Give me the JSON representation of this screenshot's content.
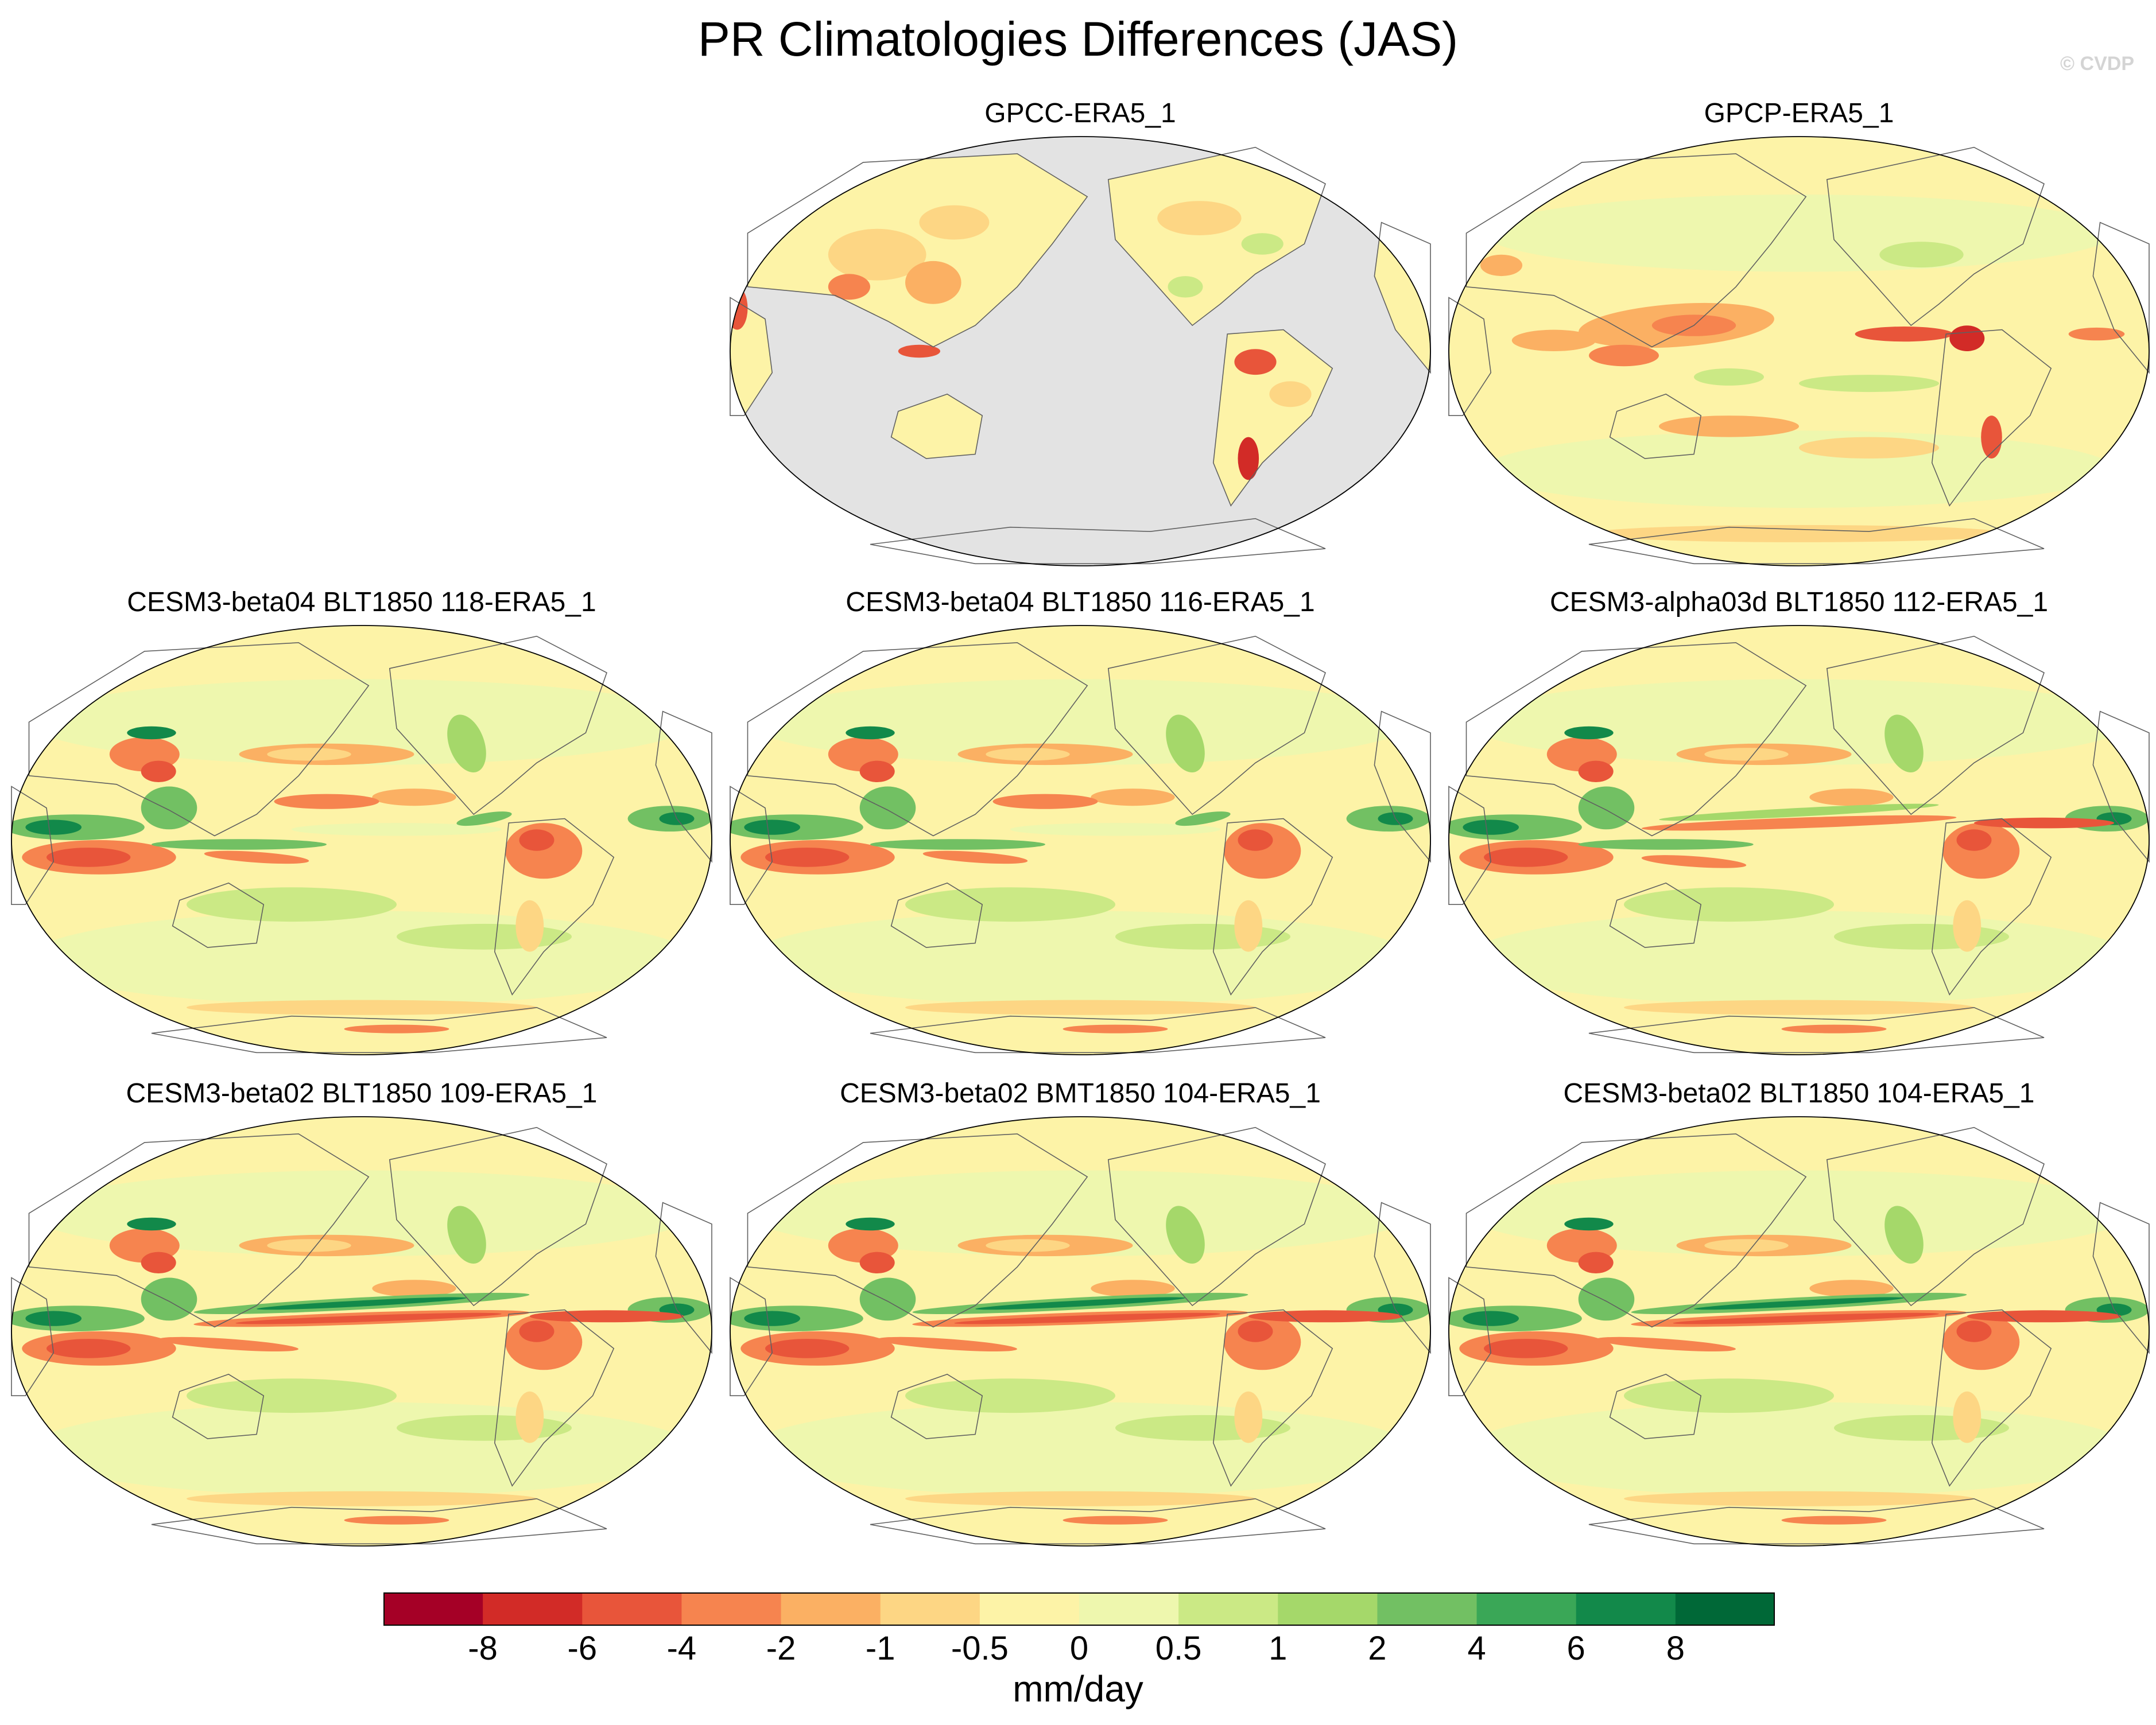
{
  "figure": {
    "title": "PR Climatologies Differences (JAS)",
    "credit": "© CVDP",
    "units": "mm/day"
  },
  "panels": [
    {
      "id": "gpcc",
      "title": "GPCC-ERA5_1",
      "style": "land_only"
    },
    {
      "id": "gpcp",
      "title": "GPCP-ERA5_1",
      "style": "obs"
    },
    {
      "id": "m118",
      "title": "CESM3-beta04 BLT1850 118-ERA5_1",
      "style": "model",
      "itcz_east": "weak"
    },
    {
      "id": "m116",
      "title": "CESM3-beta04 BLT1850 116-ERA5_1",
      "style": "model",
      "itcz_east": "weak"
    },
    {
      "id": "m112",
      "title": "CESM3-alpha03d BLT1850 112-ERA5_1",
      "style": "model",
      "itcz_east": "medium"
    },
    {
      "id": "m109",
      "title": "CESM3-beta02 BLT1850 109-ERA5_1",
      "style": "model",
      "itcz_east": "strong"
    },
    {
      "id": "m104b",
      "title": "CESM3-beta02 BMT1850 104-ERA5_1",
      "style": "model",
      "itcz_east": "strong"
    },
    {
      "id": "m104",
      "title": "CESM3-beta02 BLT1850 104-ERA5_1",
      "style": "model",
      "itcz_east": "strong"
    }
  ],
  "colorbar": {
    "levels": [
      "-8",
      "-6",
      "-4",
      "-2",
      "-1",
      "-0.5",
      "0",
      "0.5",
      "1",
      "2",
      "4",
      "6",
      "8"
    ],
    "colors": [
      "#a50026",
      "#d22b27",
      "#e8553a",
      "#f6844f",
      "#fbb063",
      "#fdd684",
      "#fdf3a7",
      "#eef7ae",
      "#cbe985",
      "#a5d86a",
      "#72c063",
      "#3aa757",
      "#12894a",
      "#006837"
    ]
  },
  "map_colors": {
    "ocean_gray": "#e3e3e3",
    "coast": "#606060",
    "border": "#909090"
  }
}
